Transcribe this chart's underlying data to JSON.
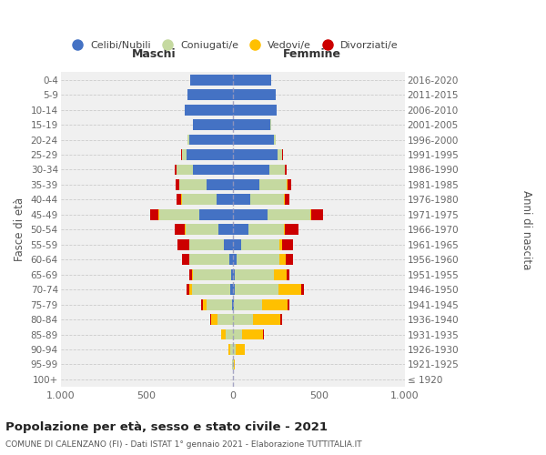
{
  "age_groups": [
    "0-4",
    "5-9",
    "10-14",
    "15-19",
    "20-24",
    "25-29",
    "30-34",
    "35-39",
    "40-44",
    "45-49",
    "50-54",
    "55-59",
    "60-64",
    "65-69",
    "70-74",
    "75-79",
    "80-84",
    "85-89",
    "90-94",
    "95-99",
    "100+"
  ],
  "birth_years": [
    "2016-2020",
    "2011-2015",
    "2006-2010",
    "2001-2005",
    "1996-2000",
    "1991-1995",
    "1986-1990",
    "1981-1985",
    "1976-1980",
    "1971-1975",
    "1966-1970",
    "1961-1965",
    "1956-1960",
    "1951-1955",
    "1946-1950",
    "1941-1945",
    "1936-1940",
    "1931-1935",
    "1926-1930",
    "1921-1925",
    "≤ 1920"
  ],
  "maschi_celibi": [
    245,
    265,
    280,
    230,
    255,
    270,
    230,
    150,
    95,
    195,
    85,
    50,
    20,
    10,
    15,
    5,
    0,
    0,
    0,
    0,
    0
  ],
  "maschi_coniugati": [
    0,
    0,
    0,
    3,
    10,
    25,
    95,
    160,
    200,
    230,
    190,
    200,
    230,
    220,
    220,
    145,
    90,
    40,
    15,
    2,
    0
  ],
  "maschi_vedovi": [
    0,
    0,
    0,
    0,
    0,
    0,
    0,
    2,
    5,
    5,
    5,
    5,
    5,
    8,
    20,
    25,
    35,
    30,
    12,
    2,
    0
  ],
  "maschi_divorziati": [
    0,
    0,
    0,
    0,
    0,
    5,
    10,
    20,
    25,
    50,
    55,
    65,
    40,
    15,
    15,
    8,
    5,
    0,
    0,
    0,
    0
  ],
  "femmine_nubili": [
    225,
    250,
    255,
    220,
    240,
    260,
    215,
    155,
    100,
    200,
    90,
    50,
    20,
    10,
    10,
    5,
    0,
    0,
    0,
    0,
    0
  ],
  "femmine_coniugate": [
    0,
    0,
    0,
    3,
    10,
    25,
    90,
    160,
    200,
    250,
    205,
    220,
    250,
    230,
    255,
    165,
    120,
    55,
    15,
    5,
    0
  ],
  "femmine_vedove": [
    0,
    0,
    0,
    0,
    0,
    0,
    0,
    3,
    5,
    8,
    10,
    15,
    40,
    75,
    135,
    150,
    155,
    120,
    55,
    5,
    0
  ],
  "femmine_divorziate": [
    0,
    0,
    0,
    0,
    0,
    5,
    10,
    20,
    25,
    65,
    75,
    65,
    40,
    15,
    15,
    10,
    10,
    5,
    0,
    0,
    0
  ],
  "color_celibi": "#4472c4",
  "color_coniugati": "#c5d9a0",
  "color_vedovi": "#ffc000",
  "color_divorziati": "#cc0000",
  "xlim": 1000,
  "title": "Popolazione per età, sesso e stato civile - 2021",
  "subtitle": "COMUNE DI CALENZANO (FI) - Dati ISTAT 1° gennaio 2021 - Elaborazione TUTTITALIA.IT",
  "ylabel_left": "Fasce di età",
  "ylabel_right": "Anni di nascita",
  "label_maschi": "Maschi",
  "label_femmine": "Femmine",
  "legend_labels": [
    "Celibi/Nubili",
    "Coniugati/e",
    "Vedovi/e",
    "Divorziati/e"
  ],
  "bg_color": "#f0f0f0",
  "xtick_labels": [
    "1.000",
    "500",
    "0",
    "500",
    "1.000"
  ],
  "xtick_vals": [
    -1000,
    -500,
    0,
    500,
    1000
  ]
}
